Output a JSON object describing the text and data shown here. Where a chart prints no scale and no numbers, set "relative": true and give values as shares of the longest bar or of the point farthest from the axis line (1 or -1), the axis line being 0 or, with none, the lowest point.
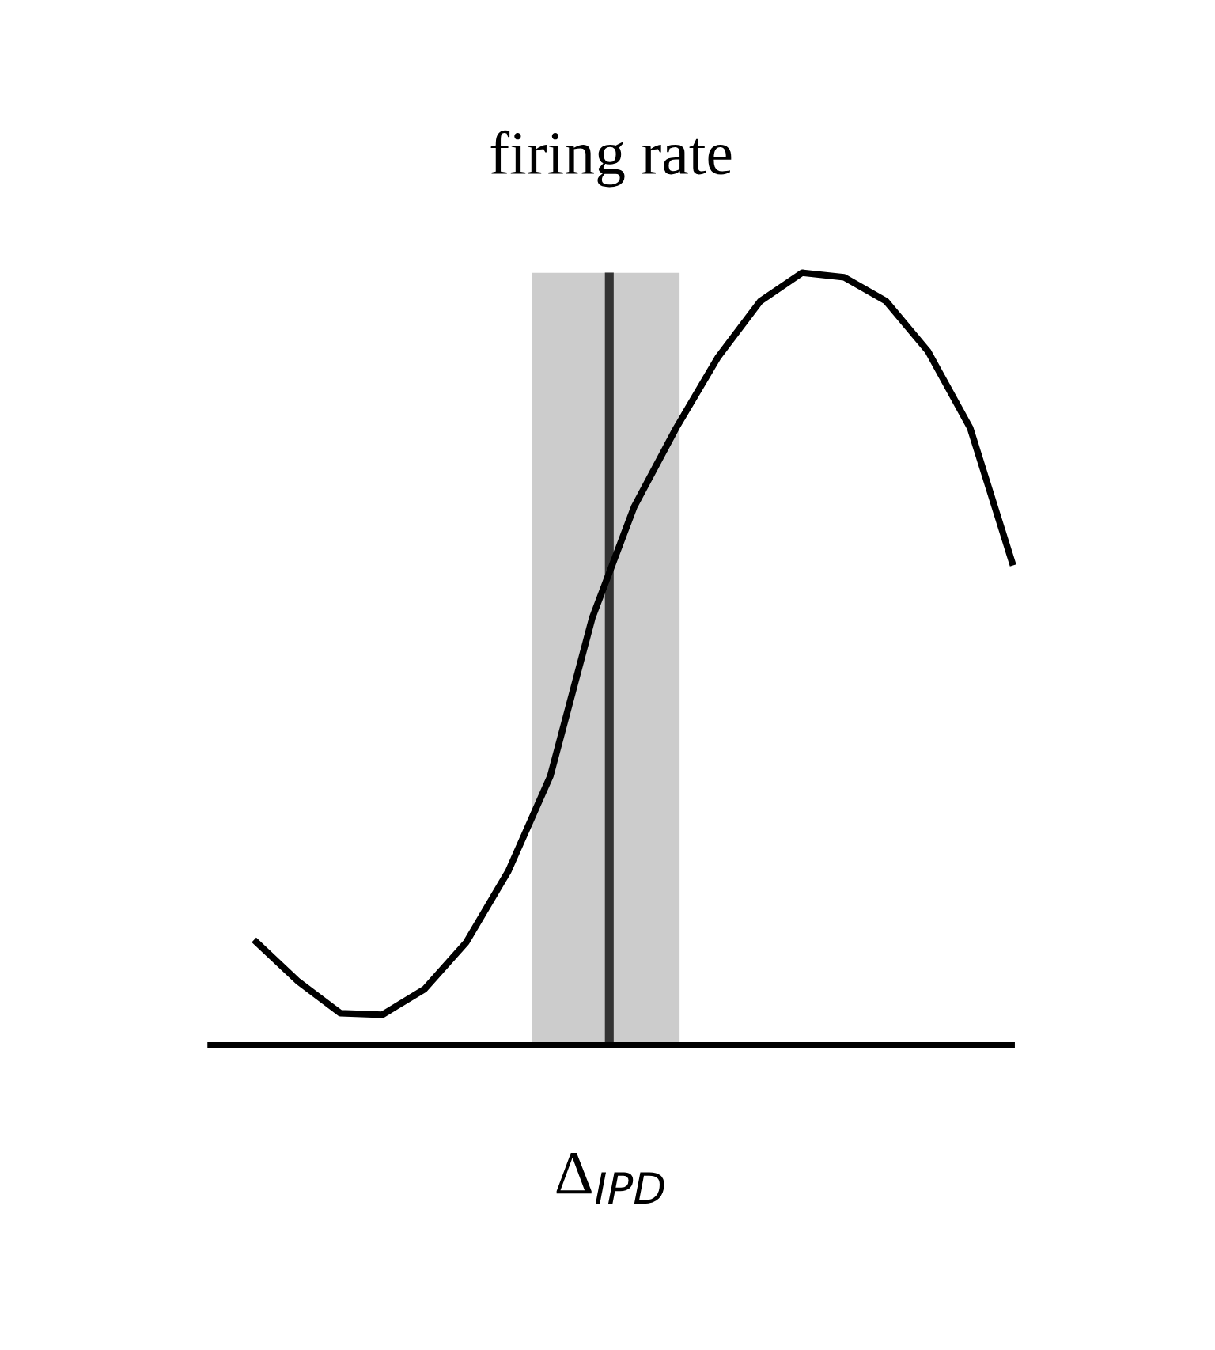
{
  "chart_data": {
    "type": "line",
    "title": "firing rate",
    "xlabel": "Δ$_{IPD}$",
    "relative": true,
    "categories": [
      null,
      null,
      null,
      null,
      null,
      null,
      null,
      null,
      null,
      null,
      null,
      null,
      null,
      null,
      null,
      null,
      null,
      null,
      null
    ],
    "series": [
      {
        "color": "#000000",
        "values": [
          0.133,
          0.082,
          0.041,
          0.039,
          0.072,
          0.133,
          0.225,
          0.348,
          0.553,
          0.697,
          0.799,
          0.891,
          0.963,
          1.0,
          0.994,
          0.963,
          0.898,
          0.799,
          0.625
        ]
      }
    ],
    "grid": false,
    "legend": false
  }
}
